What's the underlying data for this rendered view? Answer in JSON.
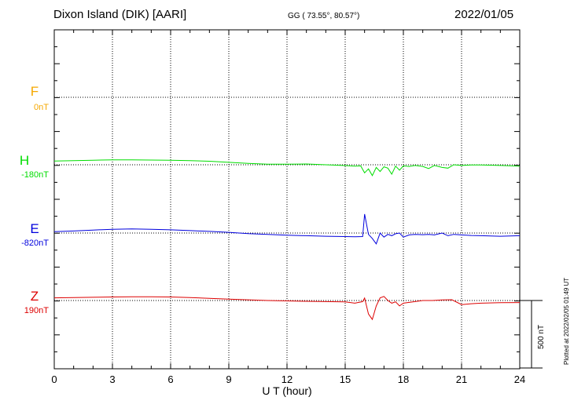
{
  "header": {
    "title": "Dixon Island (DIK)  [AARI]",
    "coords": "GG ( 73.55°,  80.57°)",
    "date": "2022/01/05"
  },
  "plotted_note": "Plotted at 2022/02/05 01:49 UT",
  "scale_bar": {
    "label": "500 nT",
    "value_nT": 500
  },
  "channels": [
    {
      "name": "F",
      "baseline": "0nT",
      "color": "#f5a800"
    },
    {
      "name": "H",
      "baseline": "-180nT",
      "color": "#00dd00"
    },
    {
      "name": "E",
      "baseline": "-820nT",
      "color": "#0000dd"
    },
    {
      "name": "Z",
      "baseline": "190nT",
      "color": "#dd0000"
    }
  ],
  "chart_data": {
    "type": "line",
    "xlabel": "U T (hour)",
    "xlim": [
      0,
      24
    ],
    "xticks": [
      0,
      3,
      6,
      9,
      12,
      15,
      18,
      21,
      24
    ],
    "xtick_labels": [
      "0",
      "3",
      "6",
      "9",
      "12",
      "15",
      "18",
      "21",
      "24"
    ],
    "y_units": "nT",
    "grid": true,
    "series": [
      {
        "name": "F",
        "baseline_nT": 0,
        "x": [],
        "y": []
      },
      {
        "name": "H",
        "baseline_nT": -180,
        "x": [
          0,
          1,
          2,
          3,
          4,
          5,
          6,
          7,
          8,
          9,
          10,
          11,
          12,
          13,
          14,
          15,
          15.5,
          15.8,
          16.0,
          16.2,
          16.4,
          16.6,
          16.8,
          17.0,
          17.2,
          17.4,
          17.6,
          17.8,
          18.0,
          18.3,
          18.6,
          19.0,
          19.3,
          19.6,
          20.0,
          20.3,
          20.6,
          21.0,
          21.5,
          22,
          23,
          24
        ],
        "y": [
          28,
          30,
          34,
          36,
          36,
          35,
          34,
          31,
          26,
          18,
          10,
          4,
          4,
          6,
          0,
          -6,
          -10,
          -8,
          -60,
          -30,
          -80,
          -20,
          -50,
          -15,
          -25,
          -70,
          -10,
          -40,
          -8,
          -12,
          -5,
          -12,
          -28,
          -5,
          -20,
          -25,
          0,
          -5,
          -2,
          -2,
          -5,
          -10
        ]
      },
      {
        "name": "E",
        "baseline_nT": -820,
        "x": [
          0,
          1,
          2,
          3,
          4,
          5,
          6,
          7,
          8,
          9,
          10,
          11,
          12,
          13,
          14,
          15,
          15.5,
          15.9,
          16.0,
          16.2,
          16.4,
          16.6,
          16.8,
          17.0,
          17.2,
          17.4,
          17.6,
          17.8,
          18.0,
          18.3,
          18.6,
          19.0,
          19.3,
          19.6,
          20.0,
          20.3,
          20.6,
          21.0,
          21.5,
          22,
          23,
          24
        ],
        "y": [
          10,
          15,
          22,
          28,
          30,
          28,
          24,
          18,
          12,
          5,
          -4,
          -10,
          -16,
          -20,
          -24,
          -26,
          -28,
          -26,
          140,
          -10,
          -40,
          -80,
          0,
          -30,
          -10,
          -20,
          -5,
          0,
          -30,
          -14,
          -10,
          -12,
          -10,
          -14,
          0,
          -20,
          -10,
          -14,
          -18,
          -20,
          -24,
          -20
        ]
      },
      {
        "name": "Z",
        "baseline_nT": 190,
        "x": [
          0,
          1,
          2,
          3,
          4,
          5,
          6,
          7,
          8,
          9,
          10,
          11,
          12,
          13,
          14,
          15,
          15.5,
          15.9,
          16.0,
          16.2,
          16.4,
          16.6,
          16.8,
          17.0,
          17.2,
          17.4,
          17.6,
          17.8,
          18.0,
          18.3,
          18.6,
          19.0,
          19.5,
          20.0,
          20.5,
          21.0,
          21.5,
          22,
          23,
          24
        ],
        "y": [
          20,
          22,
          24,
          26,
          28,
          28,
          26,
          22,
          16,
          10,
          5,
          0,
          -3,
          -6,
          -8,
          -10,
          -20,
          -8,
          18,
          -100,
          -140,
          -40,
          20,
          30,
          0,
          -20,
          -10,
          -40,
          -20,
          -14,
          -8,
          0,
          0,
          4,
          6,
          -30,
          -24,
          -20,
          -16,
          -15
        ]
      }
    ]
  }
}
